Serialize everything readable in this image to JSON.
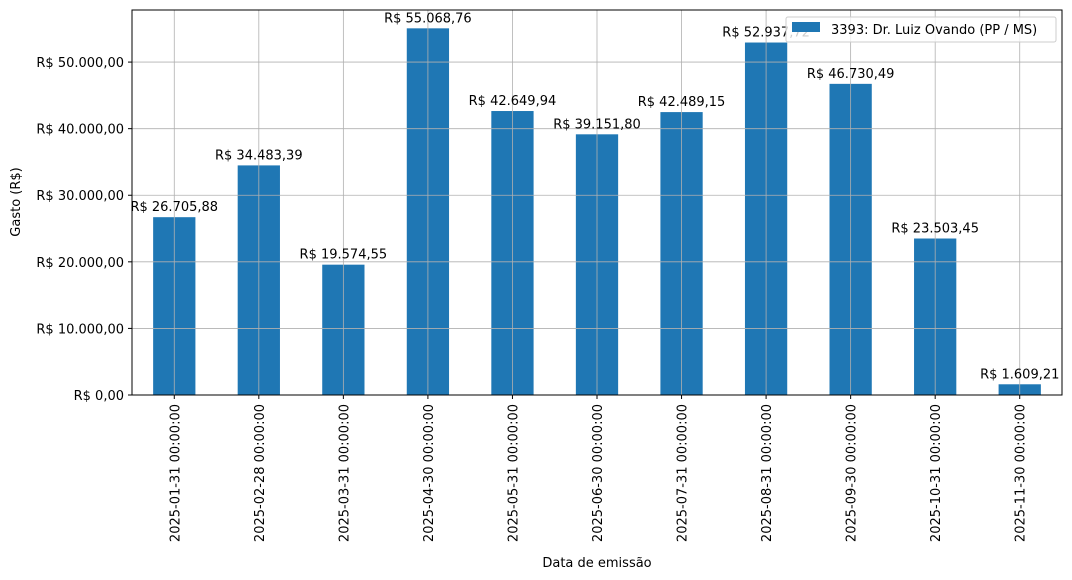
{
  "chart_data": {
    "type": "bar",
    "title": "",
    "xlabel": "Data de emissão",
    "ylabel": "Gasto (R$)",
    "ylim": [
      0,
      57822
    ],
    "grid": true,
    "legend_position": "upper right",
    "bar_color": "#1f77b4",
    "categories": [
      "2025-01-31 00:00:00",
      "2025-02-28 00:00:00",
      "2025-03-31 00:00:00",
      "2025-04-30 00:00:00",
      "2025-05-31 00:00:00",
      "2025-06-30 00:00:00",
      "2025-07-31 00:00:00",
      "2025-08-31 00:00:00",
      "2025-09-30 00:00:00",
      "2025-10-31 00:00:00",
      "2025-11-30 00:00:00"
    ],
    "series": [
      {
        "name": "3393: Dr. Luiz Ovando (PP / MS)",
        "values": [
          26705.88,
          34483.39,
          19574.55,
          55068.76,
          42649.94,
          39151.8,
          42489.15,
          52937.72,
          46730.49,
          23503.45,
          1609.21
        ],
        "labels": [
          "R$ 26.705,88",
          "R$ 34.483,39",
          "R$ 19.574,55",
          "R$ 55.068,76",
          "R$ 42.649,94",
          "R$ 39.151,80",
          "R$ 42.489,15",
          "R$ 52.937,72",
          "R$ 46.730,49",
          "R$ 23.503,45",
          "R$ 1.609,21"
        ]
      }
    ],
    "yticks": [
      0,
      10000,
      20000,
      30000,
      40000,
      50000
    ],
    "ytick_labels": [
      "R$ 0,00",
      "R$ 10.000,00",
      "R$ 20.000,00",
      "R$ 30.000,00",
      "R$ 40.000,00",
      "R$ 50.000,00"
    ]
  }
}
